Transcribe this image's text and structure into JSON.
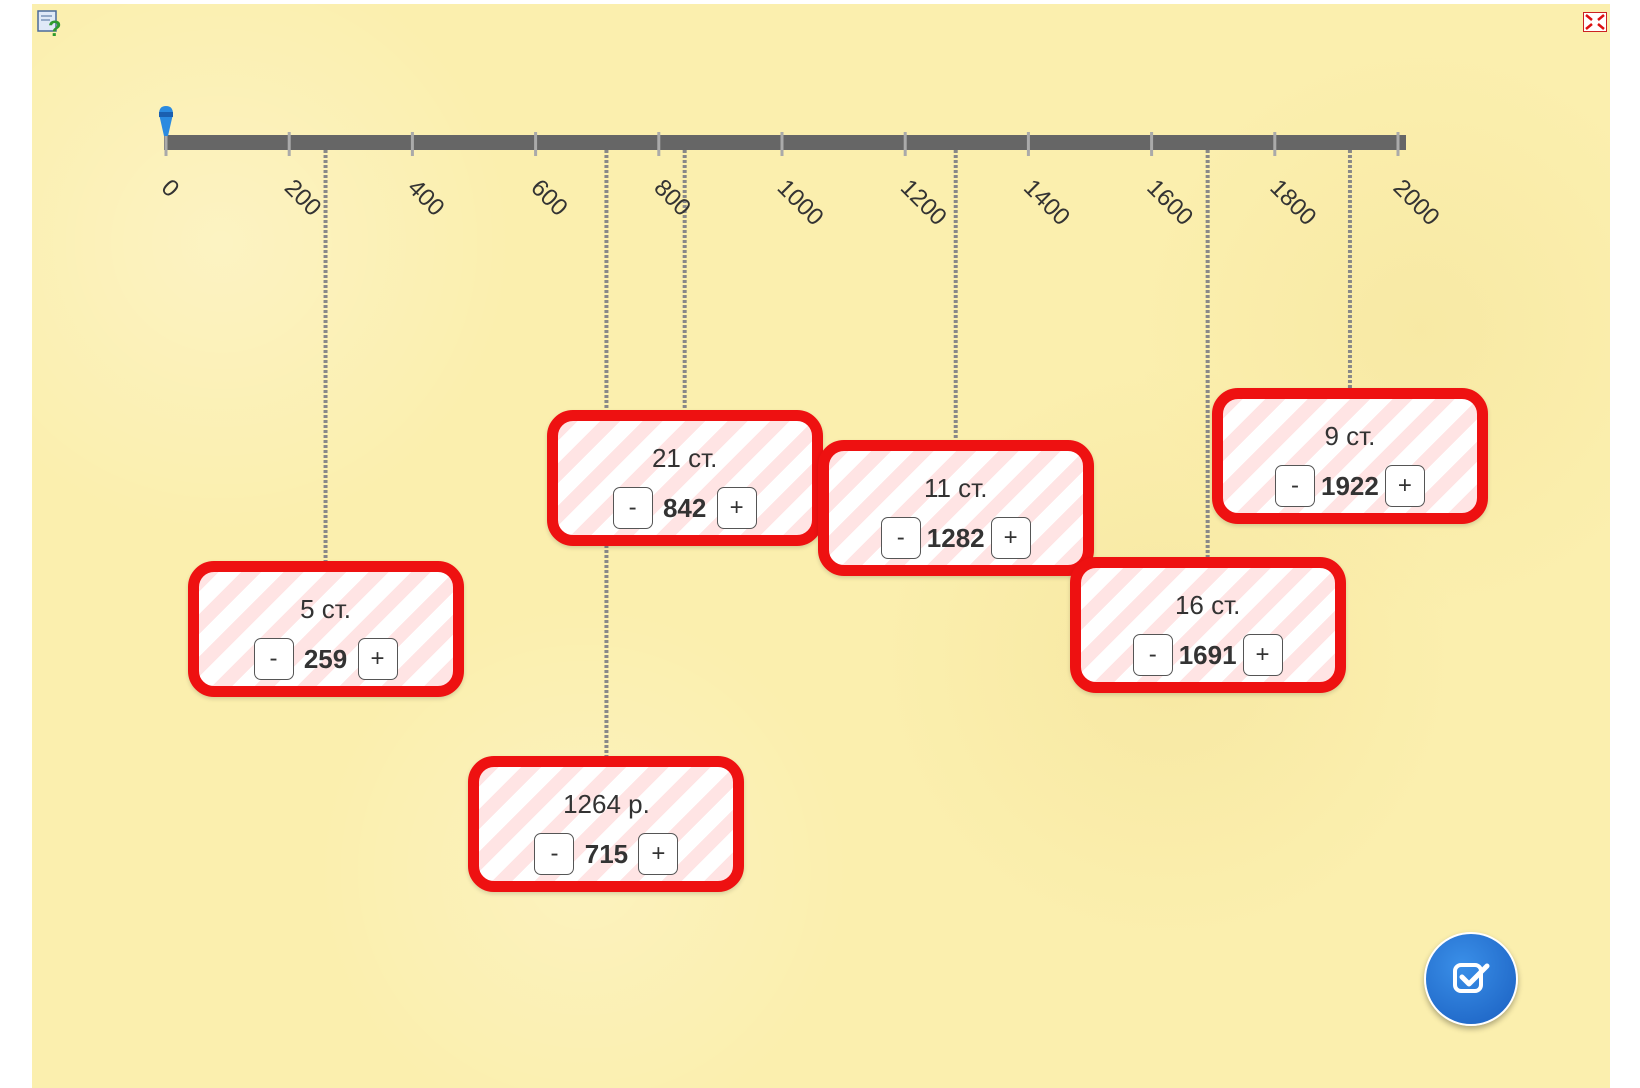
{
  "app": {
    "help_icon": "help-question-icon",
    "fullscreen_icon": "fullscreen-icon",
    "check_icon": "check-square-icon",
    "accent_color": "#ee1111",
    "check_button_color": "#1f6fd1"
  },
  "timeline": {
    "min": 0,
    "max": 2000,
    "ticks": [
      0,
      200,
      400,
      600,
      800,
      1000,
      1200,
      1400,
      1600,
      1800,
      2000
    ],
    "tick_labels": [
      "0",
      "200",
      "400",
      "600",
      "800",
      "1000",
      "1200",
      "1400",
      "1600",
      "1800",
      "2000"
    ],
    "marker_value": 0
  },
  "cards": [
    {
      "label": "5 ст.",
      "value": 259,
      "minus": "-",
      "plus": "+"
    },
    {
      "label": "1264 р.",
      "value": 715,
      "minus": "-",
      "plus": "+"
    },
    {
      "label": "21 ст.",
      "value": 842,
      "minus": "-",
      "plus": "+"
    },
    {
      "label": "11 ст.",
      "value": 1282,
      "minus": "-",
      "plus": "+"
    },
    {
      "label": "16 ст.",
      "value": 1691,
      "minus": "-",
      "plus": "+"
    },
    {
      "label": "9 ст.",
      "value": 1922,
      "minus": "-",
      "plus": "+"
    }
  ]
}
